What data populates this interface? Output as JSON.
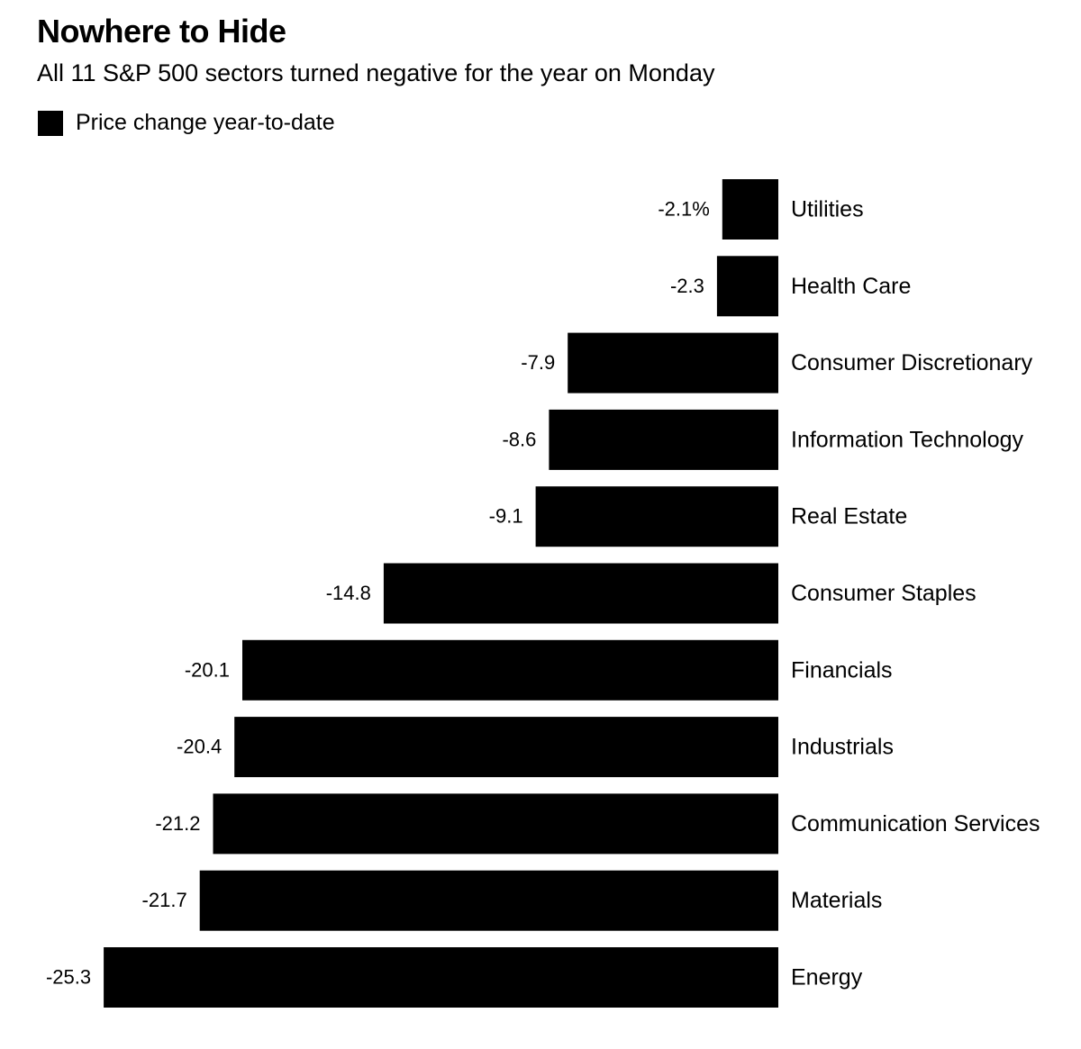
{
  "chart_data": {
    "type": "bar",
    "orientation": "horizontal",
    "title": "Nowhere to Hide",
    "subtitle": "All 11 S&P 500 sectors turned negative for the year on Monday",
    "legend": [
      "Price change year-to-date"
    ],
    "categories": [
      "Utilities",
      "Health Care",
      "Consumer Discretionary",
      "Information Technology",
      "Real Estate",
      "Consumer Staples",
      "Financials",
      "Industrials",
      "Communication Services",
      "Materials",
      "Energy"
    ],
    "values": [
      -2.1,
      -2.3,
      -7.9,
      -8.6,
      -9.1,
      -14.8,
      -20.1,
      -20.4,
      -21.2,
      -21.7,
      -25.3
    ],
    "value_labels": [
      "-2.1%",
      "-2.3",
      "-7.9",
      "-8.6",
      "-9.1",
      "-14.8",
      "-20.1",
      "-20.4",
      "-21.2",
      "-21.7",
      "-25.3"
    ],
    "bar_color": "#000000",
    "grid": false
  }
}
